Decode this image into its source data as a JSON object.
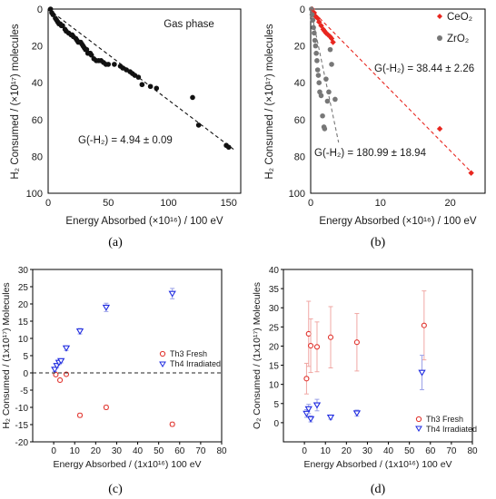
{
  "colors": {
    "red": "#e8261f",
    "grey": "#777777",
    "black": "#111111",
    "blue": "#1f2be0",
    "open_red": "#e0302a",
    "errbar_red": "#f0a8a4",
    "errbar_blue": "#9aa0e8"
  },
  "panels": [
    {
      "id": "a",
      "caption": "(a)",
      "xlabel": "Energy Absorbed (×10¹⁶) / 100 eV",
      "ylabel": "H₂ Consumed / (×10¹⁷) molecules",
      "inner_label": "Gas phase",
      "annotation": "G(-H₂) = 4.94 ± 0.09",
      "xlim": [
        0,
        160
      ],
      "ylim": [
        0,
        100
      ],
      "xticks": [
        0,
        50,
        100,
        150
      ],
      "yticks": [
        0,
        20,
        40,
        60,
        80,
        100
      ]
    },
    {
      "id": "b",
      "caption": "(b)",
      "xlabel": "Energy Absorbed (×10¹⁶) / 100 eV",
      "ylabel": "H₂ Consumed / (×10¹⁷) molecules",
      "legend": [
        "CeO₂",
        "ZrO₂"
      ],
      "annotation_red": "G(-H₂) = 38.44 ± 2.26",
      "annotation_grey": "G(-H₂) = 180.99 ± 18.94",
      "xlim": [
        0,
        25
      ],
      "ylim": [
        0,
        100
      ],
      "xticks": [
        0,
        10,
        20
      ],
      "yticks": [
        0,
        20,
        40,
        60,
        80,
        100
      ]
    },
    {
      "id": "c",
      "caption": "(c)",
      "xlabel": "Energy Absorbed / (1x10¹⁶) 100 eV",
      "ylabel": "H₂ Consumed / (1x10¹⁷) Molecules",
      "legend": [
        "Th3 Fresh",
        "Th4 Irradiated"
      ],
      "xlim": [
        -10,
        80
      ],
      "ylim": [
        -20,
        30
      ],
      "xticks": [
        0,
        10,
        20,
        30,
        40,
        50,
        60,
        70,
        80
      ],
      "yticks": [
        -20,
        -15,
        -10,
        -5,
        0,
        5,
        10,
        15,
        20,
        25,
        30
      ]
    },
    {
      "id": "d",
      "caption": "(d)",
      "xlabel": "Energy Absorbed / (1x10¹⁶) 100 eV",
      "ylabel": "O₂ Consumed / (1x10¹⁷) Molecules",
      "legend": [
        "Th3 Fresh",
        "Th4 Irradiated"
      ],
      "xlim": [
        -10,
        80
      ],
      "ylim": [
        -5,
        40
      ],
      "xticks": [
        0,
        10,
        20,
        30,
        40,
        50,
        60,
        70,
        80
      ],
      "yticks": [
        0,
        5,
        10,
        15,
        20,
        25,
        30,
        35,
        40
      ]
    }
  ],
  "chart_data": [
    {
      "type": "scatter",
      "panel": "a",
      "y_axis_inverted": true,
      "series": [
        {
          "marker": "filled-circle",
          "x": [
            2,
            3,
            4,
            6,
            7,
            8,
            9,
            10,
            11,
            12,
            14,
            15,
            17,
            19,
            20,
            21,
            23,
            24,
            25,
            27,
            28,
            29,
            30,
            31,
            32,
            33,
            34,
            35,
            36,
            38,
            40,
            42,
            44,
            46,
            48,
            50,
            55,
            60,
            62,
            65,
            68,
            70,
            72,
            75,
            78,
            85,
            90,
            120,
            125,
            148,
            150
          ],
          "y": [
            0,
            2,
            3,
            5,
            6,
            7,
            8,
            8,
            9,
            9,
            11,
            12,
            13,
            14,
            14,
            15,
            16,
            17,
            18,
            18,
            19,
            20,
            21,
            22,
            22,
            24,
            24,
            24,
            25,
            27,
            28,
            28,
            28,
            29,
            30,
            30,
            30,
            31,
            32,
            33,
            34,
            35,
            36,
            37,
            41,
            42,
            43,
            48,
            63,
            74,
            75
          ]
        },
        {
          "name": "fit",
          "type": "line",
          "x": [
            0,
            155
          ],
          "y": [
            0,
            76.6
          ]
        }
      ]
    },
    {
      "type": "scatter",
      "panel": "b",
      "y_axis_inverted": true,
      "series": [
        {
          "name": "CeO₂",
          "marker": "filled-diamond",
          "x": [
            0.2,
            0.5,
            0.7,
            1.0,
            1.2,
            1.5,
            1.8,
            2.0,
            2.2,
            2.5,
            2.8,
            3.0,
            3.2,
            18.5,
            23.0
          ],
          "y": [
            0,
            2,
            4,
            5,
            7,
            9,
            11,
            12,
            13,
            14,
            15,
            16,
            18,
            65,
            89
          ]
        },
        {
          "name": "ZrO₂",
          "marker": "filled-circle",
          "x": [
            0.1,
            0.2,
            0.3,
            0.4,
            0.5,
            0.6,
            0.7,
            0.8,
            0.9,
            1.0,
            1.1,
            1.2,
            1.3,
            1.5,
            1.7,
            1.9,
            2.0,
            2.2,
            2.4,
            2.6,
            2.8,
            3.0,
            3.5
          ],
          "y": [
            0,
            3,
            6,
            10,
            13,
            17,
            20,
            24,
            28,
            33,
            36,
            40,
            45,
            47,
            58,
            64,
            65,
            38,
            50,
            45,
            22,
            30,
            49
          ]
        },
        {
          "name": "CeO₂ fit",
          "type": "line",
          "x": [
            0,
            23.2
          ],
          "y": [
            0,
            89.2
          ]
        },
        {
          "name": "ZrO₂ fit",
          "type": "line",
          "x": [
            0,
            4.0
          ],
          "y": [
            0,
            72.4
          ]
        }
      ]
    },
    {
      "type": "scatter",
      "panel": "c",
      "series": [
        {
          "name": "Th3 Fresh",
          "marker": "open-circle",
          "x": [
            1,
            3,
            6,
            12.5,
            25,
            56.5
          ],
          "y": [
            -0.5,
            -2.1,
            -0.4,
            -12.3,
            -10,
            -14.9
          ],
          "err": [
            0.5,
            0.5,
            0.5,
            0.6,
            0.6,
            0.6
          ]
        },
        {
          "name": "Th4 Irradiated",
          "marker": "open-triangle-down",
          "x": [
            0.5,
            1.5,
            2.5,
            3.5,
            6,
            12.5,
            25,
            56.5
          ],
          "y": [
            1.0,
            2.1,
            3.0,
            3.5,
            7.2,
            12.1,
            19.0,
            23.0
          ],
          "err": [
            0.6,
            0.6,
            0.6,
            0.6,
            0.7,
            0.8,
            1.2,
            1.5
          ]
        },
        {
          "name": "zero line",
          "type": "line",
          "x": [
            -10,
            80
          ],
          "y": [
            0,
            0
          ]
        }
      ]
    },
    {
      "type": "scatter",
      "panel": "d",
      "series": [
        {
          "name": "Th3 Fresh",
          "marker": "open-circle",
          "x": [
            1,
            2,
            3,
            6,
            12.5,
            25,
            57
          ],
          "y": [
            11.5,
            23.2,
            20.1,
            19.8,
            22.3,
            21,
            25.4
          ],
          "err": [
            4,
            8.5,
            7,
            6.5,
            8,
            7.5,
            9
          ]
        },
        {
          "name": "Th4 Irradiated",
          "marker": "open-triangle-down",
          "x": [
            1,
            2,
            3,
            6,
            12.5,
            25,
            56
          ],
          "y": [
            2.4,
            3.6,
            1.0,
            4.6,
            1.4,
            2.5,
            13.1
          ],
          "err": [
            1,
            1.2,
            0.8,
            1.5,
            0.5,
            0.8,
            4.5
          ]
        }
      ]
    }
  ]
}
